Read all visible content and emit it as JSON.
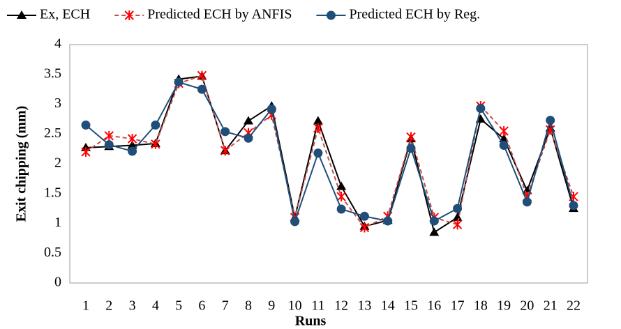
{
  "chart_data": {
    "type": "line",
    "x_label": "Runs",
    "y_label": "Exit chipping (mm)",
    "categories": [
      "1",
      "2",
      "3",
      "4",
      "5",
      "6",
      "7",
      "8",
      "9",
      "10",
      "11",
      "12",
      "13",
      "14",
      "15",
      "16",
      "17",
      "18",
      "19",
      "20",
      "21",
      "22"
    ],
    "series": [
      {
        "name": "Ex, ECH",
        "color": "#000000",
        "marker_color": "#000000",
        "marker": "triangle",
        "dash": "solid",
        "values": [
          2.27,
          2.29,
          2.31,
          2.34,
          3.42,
          3.47,
          2.22,
          2.72,
          2.97,
          1.1,
          2.72,
          1.62,
          0.95,
          1.05,
          2.42,
          0.85,
          1.1,
          2.75,
          2.42,
          1.55,
          2.6,
          1.25
        ]
      },
      {
        "name": "Predicted ECH by ANFIS",
        "color": "#c0504d",
        "marker_color": "#ff0000",
        "marker": "asterisk",
        "dash": "dashed",
        "values": [
          2.2,
          2.47,
          2.42,
          2.33,
          3.35,
          3.48,
          2.22,
          2.52,
          2.82,
          1.1,
          2.6,
          1.45,
          0.93,
          1.12,
          2.45,
          1.1,
          0.98,
          2.97,
          2.55,
          1.45,
          2.57,
          1.45
        ]
      },
      {
        "name": "Predicted ECH by Reg.",
        "color": "#1f4e79",
        "marker_color": "#1f4e79",
        "marker": "circle",
        "dash": "solid",
        "values": [
          2.65,
          2.32,
          2.21,
          2.65,
          3.37,
          3.25,
          2.54,
          2.43,
          2.92,
          1.03,
          2.18,
          1.24,
          1.12,
          1.04,
          2.26,
          1.04,
          1.25,
          2.93,
          2.31,
          1.36,
          2.73,
          1.3
        ]
      }
    ],
    "ylim": [
      0,
      4
    ],
    "yticks": [
      0,
      0.5,
      1,
      1.5,
      2,
      2.5,
      3,
      3.5,
      4
    ],
    "grid": false,
    "legend": "top"
  }
}
